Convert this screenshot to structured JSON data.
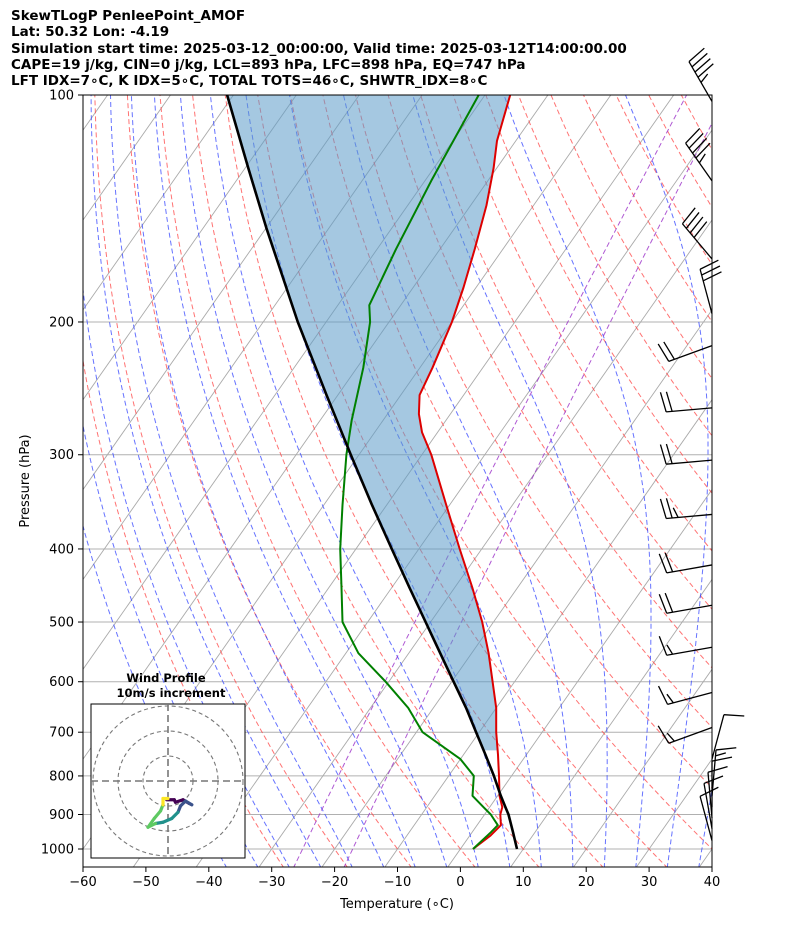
{
  "header": {
    "line1": "SkewTLogP PenleePoint_AMOF",
    "line2": "Lat: 50.32   Lon: -4.19",
    "line3": "Simulation start time: 2025-03-12_00:00:00, Valid time: 2025-03-12T14:00:00.00",
    "line4": "CAPE=19 j/kg, CIN=0 j/kg, LCL=893 hPa, LFC=898 hPa, EQ=747 hPa",
    "line5": "LFT IDX=7∘C, K IDX=5∘C, TOTAL TOTS=46∘C, SHWTR_IDX=8∘C"
  },
  "chart_data": {
    "type": "skewt",
    "xlabel": "Temperature (∘C)",
    "ylabel": "Pressure (hPa)",
    "xlim": [
      -60,
      40
    ],
    "ylim": [
      1050,
      100
    ],
    "x_ticks": [
      -60,
      -50,
      -40,
      -30,
      -20,
      -10,
      0,
      10,
      20,
      30,
      40
    ],
    "x_tick_labels": [
      "−60",
      "−50",
      "−40",
      "−30",
      "−20",
      "−10",
      "0",
      "10",
      "20",
      "30",
      "40"
    ],
    "y_ticks": [
      1000,
      900,
      800,
      700,
      600,
      500,
      400,
      300,
      200,
      100
    ],
    "y_tick_labels": [
      "1000",
      "900",
      "800",
      "700",
      "600",
      "500",
      "400",
      "300",
      "200",
      "100"
    ],
    "grid": true,
    "colors": {
      "temperature": "#dd0000",
      "dewpoint": "#008000",
      "parcel": "#000000",
      "cape_fill": "#5b9bc8",
      "dry_adiabat": "#ff4444",
      "moist_adiabat": "#3344ff",
      "mixing_ratio": "#9b30c8",
      "isotherm": "#aaaaaa"
    },
    "series": [
      {
        "key": "temperature",
        "points": [
          [
            1000,
            2.0
          ],
          [
            960,
            3.3
          ],
          [
            930,
            3.8
          ],
          [
            900,
            2.5
          ],
          [
            880,
            2.0
          ],
          [
            850,
            0.3
          ],
          [
            800,
            -2.0
          ],
          [
            750,
            -4.5
          ],
          [
            700,
            -7.3
          ],
          [
            650,
            -10.0
          ],
          [
            600,
            -13.5
          ],
          [
            550,
            -17.3
          ],
          [
            500,
            -21.8
          ],
          [
            450,
            -27.2
          ],
          [
            400,
            -33.5
          ],
          [
            350,
            -40.5
          ],
          [
            300,
            -48.5
          ],
          [
            280,
            -52.5
          ],
          [
            265,
            -55.0
          ],
          [
            250,
            -57.0
          ],
          [
            230,
            -58.0
          ],
          [
            200,
            -60.0
          ],
          [
            180,
            -62.0
          ],
          [
            160,
            -64.5
          ],
          [
            140,
            -67.5
          ],
          [
            125,
            -70.5
          ],
          [
            115,
            -73.0
          ],
          [
            100,
            -76.0
          ]
        ]
      },
      {
        "key": "dewpoint",
        "points": [
          [
            1000,
            2.0
          ],
          [
            950,
            3.0
          ],
          [
            930,
            3.3
          ],
          [
            900,
            1.0
          ],
          [
            880,
            -1.0
          ],
          [
            850,
            -4.0
          ],
          [
            800,
            -6.0
          ],
          [
            760,
            -10.0
          ],
          [
            700,
            -19.0
          ],
          [
            650,
            -24.0
          ],
          [
            600,
            -30.5
          ],
          [
            550,
            -38.0
          ],
          [
            500,
            -44.0
          ],
          [
            450,
            -48.0
          ],
          [
            400,
            -52.5
          ],
          [
            350,
            -57.0
          ],
          [
            300,
            -62.0
          ],
          [
            270,
            -65.0
          ],
          [
            230,
            -69.0
          ],
          [
            200,
            -73.0
          ],
          [
            190,
            -75.0
          ],
          [
            160,
            -77.0
          ],
          [
            130,
            -79.0
          ],
          [
            100,
            -81.0
          ]
        ]
      },
      {
        "key": "parcel",
        "points": [
          [
            1000,
            9.0
          ],
          [
            950,
            6.5
          ],
          [
            900,
            3.8
          ],
          [
            880,
            2.5
          ],
          [
            850,
            0.5
          ],
          [
            800,
            -2.8
          ],
          [
            750,
            -6.5
          ],
          [
            700,
            -10.5
          ],
          [
            650,
            -14.8
          ],
          [
            600,
            -19.7
          ],
          [
            550,
            -25.0
          ],
          [
            500,
            -30.8
          ],
          [
            450,
            -37.2
          ],
          [
            400,
            -44.3
          ],
          [
            350,
            -52.3
          ],
          [
            300,
            -61.3
          ],
          [
            250,
            -71.8
          ],
          [
            200,
            -84.5
          ],
          [
            150,
            -100.0
          ],
          [
            125,
            -109.5
          ],
          [
            100,
            -121.0
          ]
        ]
      }
    ],
    "inset": {
      "title_line1": "Wind Profile",
      "title_line2": "10m/s increment",
      "rings_ms": [
        10,
        20,
        30
      ],
      "hodograph_uv": [
        [
          -0.5,
          -7.5
        ],
        [
          2.5,
          -7.5
        ],
        [
          3.0,
          -8.5
        ],
        [
          6.0,
          -7.5
        ],
        [
          8.5,
          -9.0
        ],
        [
          9.5,
          -9.5
        ],
        [
          7.0,
          -8.0
        ],
        [
          5.0,
          -10.0
        ],
        [
          4.0,
          -12.5
        ],
        [
          1.5,
          -15.0
        ],
        [
          -2.0,
          -16.5
        ],
        [
          -5.0,
          -17.0
        ],
        [
          -8.0,
          -18.5
        ],
        [
          -5.5,
          -15.0
        ],
        [
          -3.0,
          -12.0
        ],
        [
          -2.0,
          -9.5
        ],
        [
          -2.0,
          -7.0
        ],
        [
          0.0,
          -7.0
        ]
      ]
    },
    "wind_barbs": [
      {
        "p": 102,
        "dir": 330,
        "kt": 45
      },
      {
        "p": 130,
        "dir": 325,
        "kt": 45
      },
      {
        "p": 165,
        "dir": 320,
        "kt": 40
      },
      {
        "p": 195,
        "dir": 345,
        "kt": 30
      },
      {
        "p": 215,
        "dir": 250,
        "kt": 20
      },
      {
        "p": 260,
        "dir": 265,
        "kt": 20
      },
      {
        "p": 305,
        "dir": 265,
        "kt": 20
      },
      {
        "p": 360,
        "dir": 265,
        "kt": 25
      },
      {
        "p": 420,
        "dir": 260,
        "kt": 20
      },
      {
        "p": 475,
        "dir": 260,
        "kt": 20
      },
      {
        "p": 540,
        "dir": 260,
        "kt": 15
      },
      {
        "p": 620,
        "dir": 255,
        "kt": 15
      },
      {
        "p": 690,
        "dir": 250,
        "kt": 15
      },
      {
        "p": 760,
        "dir": 15,
        "kt": 10
      },
      {
        "p": 850,
        "dir": 5,
        "kt": 15
      },
      {
        "p": 880,
        "dir": 0,
        "kt": 10
      },
      {
        "p": 910,
        "dir": 355,
        "kt": 10
      },
      {
        "p": 940,
        "dir": 350,
        "kt": 10
      },
      {
        "p": 975,
        "dir": 345,
        "kt": 10
      }
    ]
  }
}
